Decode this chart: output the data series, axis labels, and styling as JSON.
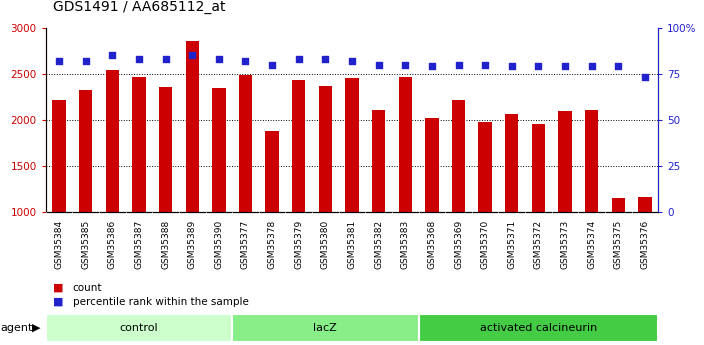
{
  "title": "GDS1491 / AA685112_at",
  "samples": [
    "GSM35384",
    "GSM35385",
    "GSM35386",
    "GSM35387",
    "GSM35388",
    "GSM35389",
    "GSM35390",
    "GSM35377",
    "GSM35378",
    "GSM35379",
    "GSM35380",
    "GSM35381",
    "GSM35382",
    "GSM35383",
    "GSM35368",
    "GSM35369",
    "GSM35370",
    "GSM35371",
    "GSM35372",
    "GSM35373",
    "GSM35374",
    "GSM35375",
    "GSM35376"
  ],
  "counts": [
    2220,
    2320,
    2540,
    2470,
    2360,
    2860,
    2350,
    2490,
    1880,
    2430,
    2370,
    2450,
    2110,
    2460,
    2020,
    2220,
    1980,
    2060,
    1960,
    2100,
    2110,
    1150,
    1165
  ],
  "percentile": [
    82,
    82,
    85,
    83,
    83,
    85,
    83,
    82,
    80,
    83,
    83,
    82,
    80,
    80,
    79,
    80,
    80,
    79,
    79,
    79,
    79,
    79,
    73
  ],
  "groups": [
    {
      "label": "control",
      "start": 0,
      "end": 7,
      "color": "#ccffcc"
    },
    {
      "label": "lacZ",
      "start": 7,
      "end": 14,
      "color": "#88ee88"
    },
    {
      "label": "activated calcineurin",
      "start": 14,
      "end": 23,
      "color": "#44cc44"
    }
  ],
  "bar_color": "#cc0000",
  "dot_color": "#2222cc",
  "ylim_left": [
    1000,
    3000
  ],
  "ylim_right": [
    0,
    100
  ],
  "yticks_left": [
    1000,
    1500,
    2000,
    2500,
    3000
  ],
  "yticks_right": [
    0,
    25,
    50,
    75,
    100
  ],
  "ytick_labels_right": [
    "0",
    "25",
    "50",
    "75",
    "100%"
  ],
  "grid_values": [
    1500,
    2000,
    2500
  ],
  "agent_label": "agent",
  "legend_count": "count",
  "legend_pct": "percentile rank within the sample",
  "bar_width": 0.5,
  "dot_size": 22
}
